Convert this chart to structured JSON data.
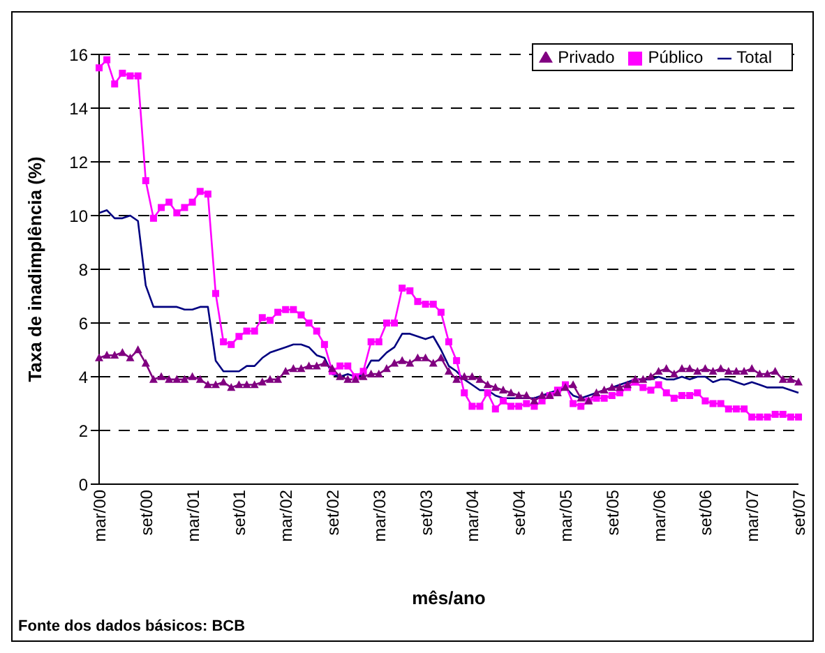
{
  "chart_data": {
    "type": "line",
    "xlabel": "mês/ano",
    "ylabel": "Taxa de inadimplência (%)",
    "categories": [
      "mar/00",
      null,
      null,
      null,
      null,
      null,
      "set/00",
      null,
      null,
      null,
      null,
      null,
      "mar/01",
      null,
      null,
      null,
      null,
      null,
      "set/01",
      null,
      null,
      null,
      null,
      null,
      "mar/02",
      null,
      null,
      null,
      null,
      null,
      "set/02",
      null,
      null,
      null,
      null,
      null,
      "mar/03",
      null,
      null,
      null,
      null,
      null,
      "set/03",
      null,
      null,
      null,
      null,
      null,
      "mar/04",
      null,
      null,
      null,
      null,
      null,
      "set/04",
      null,
      null,
      null,
      null,
      null,
      "mar/05",
      null,
      null,
      null,
      null,
      null,
      "set/05",
      null,
      null,
      null,
      null,
      null,
      "mar/06",
      null,
      null,
      null,
      null,
      null,
      "set/06",
      null,
      null,
      null,
      null,
      null,
      "mar/07",
      null,
      null,
      null,
      null,
      null,
      "set/07"
    ],
    "series": [
      {
        "name": "Total",
        "color": "#000080",
        "marker": "none",
        "values": [
          10.1,
          10.2,
          9.9,
          9.9,
          10.0,
          9.8,
          7.4,
          6.6,
          6.6,
          6.6,
          6.6,
          6.5,
          6.5,
          6.6,
          6.6,
          4.6,
          4.2,
          4.2,
          4.2,
          4.4,
          4.4,
          4.7,
          4.9,
          5.0,
          5.1,
          5.2,
          5.2,
          5.1,
          4.8,
          4.7,
          4.1,
          4.0,
          4.1,
          4.0,
          4.1,
          4.6,
          4.6,
          4.9,
          5.1,
          5.6,
          5.6,
          5.5,
          5.4,
          5.5,
          5.0,
          4.4,
          4.2,
          3.9,
          3.7,
          3.5,
          3.5,
          3.3,
          3.2,
          3.2,
          3.2,
          3.2,
          3.2,
          3.3,
          3.4,
          3.5,
          3.6,
          3.3,
          3.2,
          3.3,
          3.4,
          3.5,
          3.6,
          3.7,
          3.8,
          3.9,
          3.9,
          3.9,
          4.0,
          3.9,
          3.9,
          4.0,
          3.9,
          4.0,
          4.0,
          3.8,
          3.9,
          3.9,
          3.8,
          3.7,
          3.8,
          3.7,
          3.6,
          3.6,
          3.6,
          3.5,
          3.4
        ]
      },
      {
        "name": "Público",
        "color": "#ff00ff",
        "marker": "square",
        "values": [
          15.5,
          15.8,
          14.9,
          15.3,
          15.2,
          15.2,
          11.3,
          9.9,
          10.3,
          10.5,
          10.1,
          10.3,
          10.5,
          10.9,
          10.8,
          7.1,
          5.3,
          5.2,
          5.5,
          5.7,
          5.7,
          6.2,
          6.1,
          6.4,
          6.5,
          6.5,
          6.3,
          6.0,
          5.7,
          5.2,
          4.2,
          4.4,
          4.4,
          4.0,
          4.2,
          5.3,
          5.3,
          6.0,
          6.0,
          7.3,
          7.2,
          6.8,
          6.7,
          6.7,
          6.4,
          5.3,
          4.6,
          3.4,
          2.9,
          2.9,
          3.4,
          2.8,
          3.1,
          2.9,
          2.9,
          3.0,
          2.9,
          3.1,
          3.3,
          3.5,
          3.7,
          3.0,
          2.9,
          3.1,
          3.2,
          3.2,
          3.3,
          3.4,
          3.6,
          3.8,
          3.6,
          3.5,
          3.7,
          3.4,
          3.2,
          3.3,
          3.3,
          3.4,
          3.1,
          3.0,
          3.0,
          2.8,
          2.8,
          2.8,
          2.5,
          2.5,
          2.5,
          2.6,
          2.6,
          2.5,
          2.5
        ]
      },
      {
        "name": "Privado",
        "color": "#800080",
        "marker": "triangle",
        "values": [
          4.7,
          4.8,
          4.8,
          4.9,
          4.7,
          5.0,
          4.5,
          3.9,
          4.0,
          3.9,
          3.9,
          3.9,
          4.0,
          3.9,
          3.7,
          3.7,
          3.8,
          3.6,
          3.7,
          3.7,
          3.7,
          3.8,
          3.9,
          3.9,
          4.2,
          4.3,
          4.3,
          4.4,
          4.4,
          4.5,
          4.3,
          4.0,
          3.9,
          3.9,
          4.0,
          4.1,
          4.1,
          4.3,
          4.5,
          4.6,
          4.5,
          4.7,
          4.7,
          4.5,
          4.7,
          4.2,
          3.9,
          4.0,
          4.0,
          3.9,
          3.7,
          3.6,
          3.5,
          3.4,
          3.3,
          3.3,
          3.1,
          3.3,
          3.3,
          3.4,
          3.6,
          3.7,
          3.2,
          3.1,
          3.4,
          3.5,
          3.6,
          3.6,
          3.7,
          3.9,
          3.9,
          4.0,
          4.2,
          4.3,
          4.1,
          4.3,
          4.3,
          4.2,
          4.3,
          4.2,
          4.3,
          4.2,
          4.2,
          4.2,
          4.3,
          4.1,
          4.1,
          4.2,
          3.9,
          3.9,
          3.8
        ]
      }
    ],
    "ylim": [
      0,
      16
    ],
    "yticks": [
      0,
      2,
      4,
      6,
      8,
      10,
      12,
      14,
      16
    ],
    "grid": "y",
    "legend": "top right",
    "line_style": "solid",
    "annotations": [
      "Fonte dos dados básicos: BCB"
    ]
  }
}
